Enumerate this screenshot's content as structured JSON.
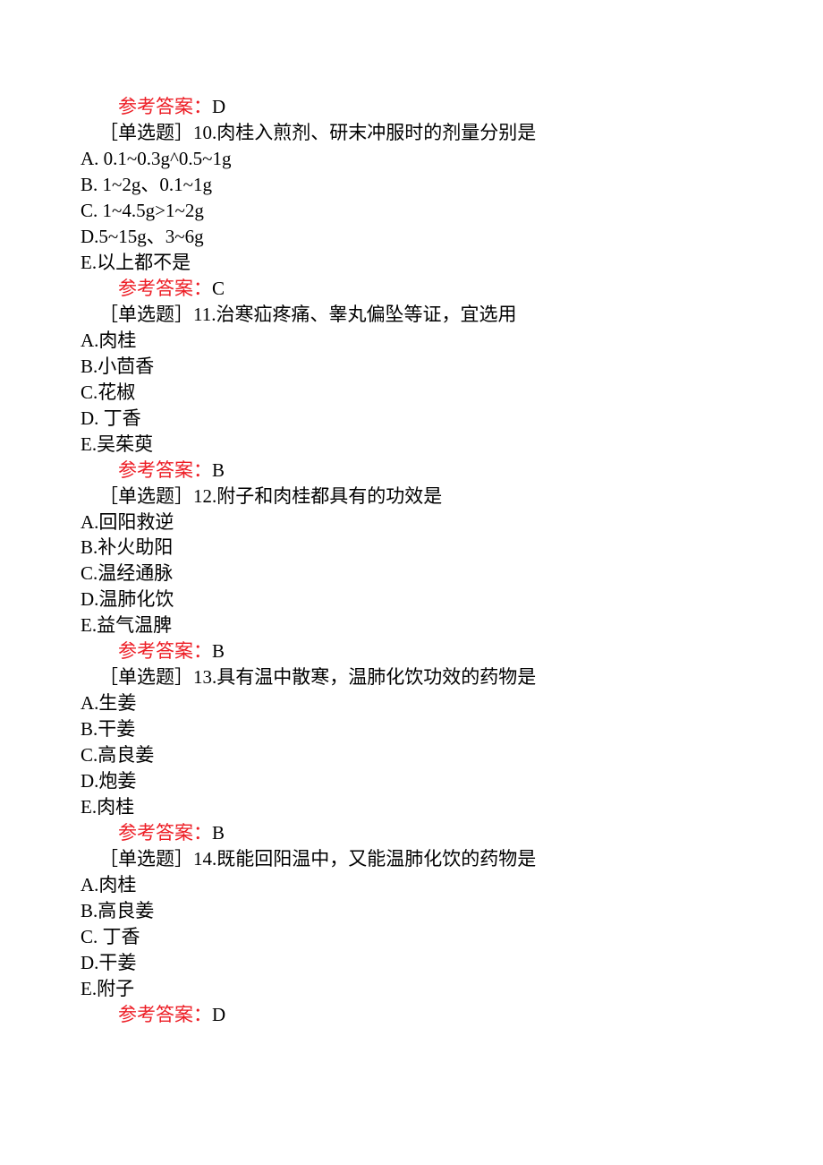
{
  "answer_label": "参考答案：",
  "colors": {
    "text": "#000000",
    "answer_label": "#ed1c24",
    "background": "#ffffff"
  },
  "font": {
    "family": "SimSun",
    "size_pt": 16,
    "line_height": 1.38
  },
  "blocks": [
    {
      "prev_answer": "D",
      "question": "［单选题］10.肉桂入煎剂、研末冲服时的剂量分别是",
      "options": [
        "A. 0.1~0.3g^0.5~1g",
        "B. 1~2g、0.1~1g",
        "C. 1~4.5g>1~2g",
        "D.5~15g、3~6g",
        "E.以上都不是"
      ],
      "answer": "C"
    },
    {
      "question": "［单选题］11.治寒疝疼痛、睾丸偏坠等证，宜选用",
      "options": [
        "A.肉桂",
        "B.小茴香",
        "C.花椒",
        "D. 丁香",
        "E.吴茱萸"
      ],
      "answer": "B"
    },
    {
      "question": "［单选题］12.附子和肉桂都具有的功效是",
      "options": [
        "A.回阳救逆",
        "B.补火助阳",
        "C.温经通脉",
        "D.温肺化饮",
        "E.益气温脾"
      ],
      "answer": "B"
    },
    {
      "question": "［单选题］13.具有温中散寒，温肺化饮功效的药物是",
      "options": [
        "A.生姜",
        "B.干姜",
        "C.高良姜",
        "D.炮姜",
        "E.肉桂"
      ],
      "answer": "B"
    },
    {
      "question": "［单选题］14.既能回阳温中，又能温肺化饮的药物是",
      "options": [
        "A.肉桂",
        "B.高良姜",
        "C. 丁香",
        "D.干姜",
        "E.附子"
      ],
      "answer": "D"
    }
  ]
}
